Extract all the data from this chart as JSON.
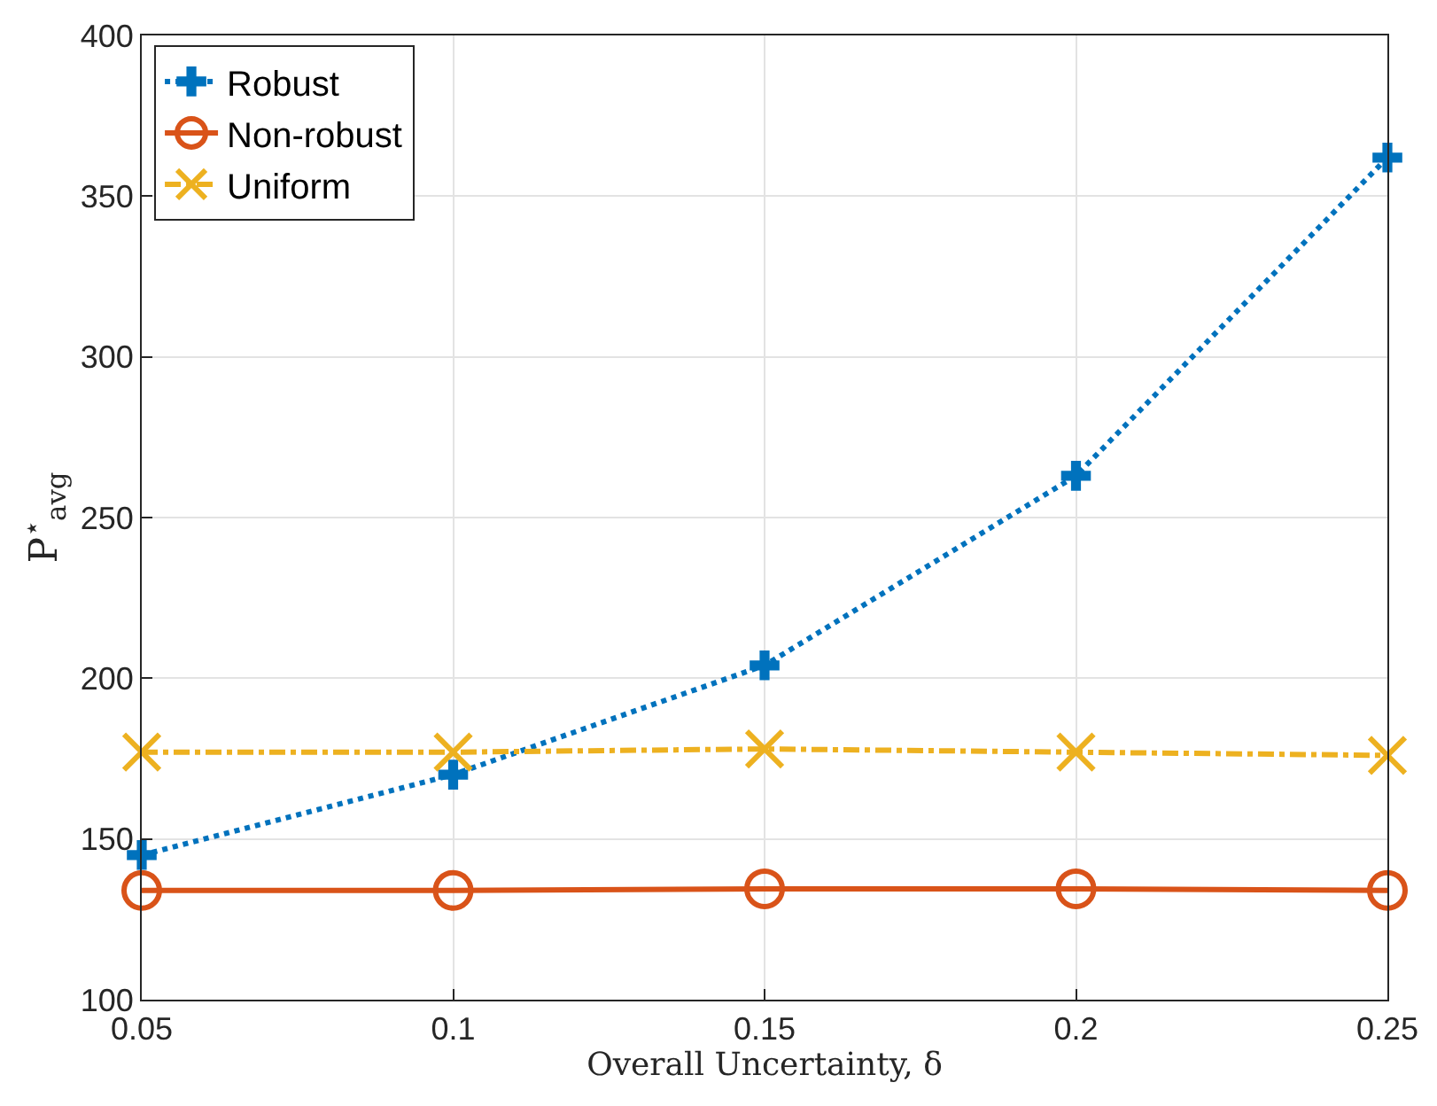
{
  "chart_data": {
    "type": "line",
    "xlabel": "Overall Uncertainty, δ",
    "ylabel": "P$^{⋆}$$_{avg}$",
    "x": [
      0.05,
      0.1,
      0.15,
      0.2,
      0.25
    ],
    "series": [
      {
        "name": "Robust",
        "color": "#0072bd",
        "marker": "cross",
        "line_style": "dotted",
        "values": [
          145,
          170,
          204,
          263,
          362
        ]
      },
      {
        "name": "Non-robust",
        "color": "#d95319",
        "marker": "circle",
        "line_style": "solid",
        "values": [
          134,
          134,
          134.5,
          134.5,
          134
        ]
      },
      {
        "name": "Uniform",
        "color": "#edb120",
        "marker": "x",
        "line_style": "dashdot",
        "values": [
          177,
          177,
          178,
          177,
          176
        ]
      }
    ],
    "xlim": [
      0.05,
      0.25
    ],
    "xticks": [
      0.05,
      0.1,
      0.15,
      0.2,
      0.25
    ],
    "ylim": [
      100,
      400
    ],
    "yticks": [
      100,
      150,
      200,
      250,
      300,
      350,
      400
    ],
    "grid": true,
    "legend": "top left"
  }
}
